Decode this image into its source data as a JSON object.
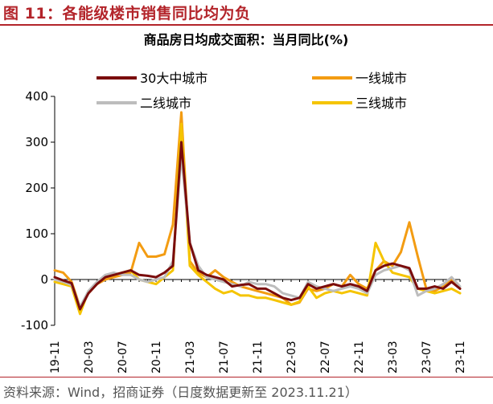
{
  "figure": {
    "title": "图 11：各能级楼市销售同比均为负",
    "source": "资料来源：Wind，招商证券（日度数据更新至 2023.11.21）"
  },
  "colors": {
    "title_red": "#b3242a",
    "series_30": "#7a0c0c",
    "series_tier1": "#f39c12",
    "series_tier2": "#bdbdbd",
    "series_tier3": "#f5c400"
  },
  "chart_data": {
    "type": "line",
    "title": "商品房日均成交面积：当月同比(%)",
    "xlabel": "",
    "ylabel": "",
    "ylim": [
      -100,
      400
    ],
    "yticks": [
      -100,
      0,
      100,
      200,
      300,
      400
    ],
    "grid": false,
    "legend_position": "top",
    "x": [
      "19-11",
      "19-12",
      "20-01",
      "20-02",
      "20-03",
      "20-04",
      "20-05",
      "20-06",
      "20-07",
      "20-08",
      "20-09",
      "20-10",
      "20-11",
      "20-12",
      "21-01",
      "21-02",
      "21-03",
      "21-04",
      "21-05",
      "21-06",
      "21-07",
      "21-08",
      "21-09",
      "21-10",
      "21-11",
      "21-12",
      "22-01",
      "22-02",
      "22-03",
      "22-04",
      "22-05",
      "22-06",
      "22-07",
      "22-08",
      "22-09",
      "22-10",
      "22-11",
      "22-12",
      "23-01",
      "23-02",
      "23-03",
      "23-04",
      "23-05",
      "23-06",
      "23-07",
      "23-08",
      "23-09",
      "23-10",
      "23-11"
    ],
    "xtick_labels": [
      "19-11",
      "20-03",
      "20-07",
      "20-11",
      "21-03",
      "21-07",
      "21-11",
      "22-03",
      "22-07",
      "22-11",
      "23-03",
      "23-07",
      "23-11"
    ],
    "series": [
      {
        "name": "30大中城市",
        "color_key": "series_30",
        "values": [
          5,
          -2,
          -8,
          -65,
          -30,
          -10,
          5,
          10,
          15,
          20,
          10,
          8,
          5,
          15,
          30,
          300,
          80,
          20,
          10,
          5,
          0,
          -15,
          -12,
          -10,
          -20,
          -20,
          -30,
          -40,
          -45,
          -40,
          -10,
          -20,
          -15,
          -10,
          -15,
          -10,
          -15,
          -25,
          20,
          30,
          35,
          30,
          25,
          -20,
          -20,
          -15,
          -20,
          -5,
          -20
        ]
      },
      {
        "name": "一线城市",
        "color_key": "series_tier1",
        "values": [
          20,
          15,
          -5,
          -60,
          -30,
          -10,
          0,
          5,
          10,
          15,
          80,
          50,
          50,
          55,
          120,
          365,
          40,
          15,
          5,
          20,
          5,
          -5,
          -15,
          -20,
          -25,
          -30,
          -35,
          -40,
          -55,
          -50,
          -20,
          -25,
          -20,
          -10,
          -15,
          10,
          -10,
          -20,
          20,
          40,
          30,
          60,
          125,
          50,
          -20,
          -25,
          -15,
          0,
          -20
        ]
      },
      {
        "name": "二线城市",
        "color_key": "series_tier2",
        "values": [
          0,
          -5,
          -12,
          -60,
          -25,
          -5,
          10,
          15,
          10,
          10,
          0,
          -5,
          0,
          5,
          40,
          270,
          80,
          30,
          5,
          0,
          -5,
          -10,
          -15,
          -5,
          -10,
          -10,
          -15,
          -30,
          -35,
          -40,
          -5,
          -15,
          -20,
          -25,
          -20,
          -15,
          -20,
          -30,
          10,
          20,
          25,
          30,
          20,
          -35,
          -25,
          -20,
          -10,
          5,
          -15
        ]
      },
      {
        "name": "三线城市",
        "color_key": "series_tier3",
        "values": [
          -5,
          -10,
          -15,
          -75,
          -25,
          -10,
          5,
          10,
          15,
          20,
          0,
          -5,
          -10,
          5,
          20,
          340,
          30,
          10,
          -5,
          -20,
          -30,
          -25,
          -35,
          -35,
          -40,
          -40,
          -45,
          -50,
          -55,
          -48,
          -15,
          -40,
          -30,
          -25,
          -30,
          -25,
          -30,
          -35,
          80,
          40,
          15,
          10,
          5,
          -20,
          -25,
          -30,
          -25,
          -20,
          -30
        ]
      }
    ]
  }
}
